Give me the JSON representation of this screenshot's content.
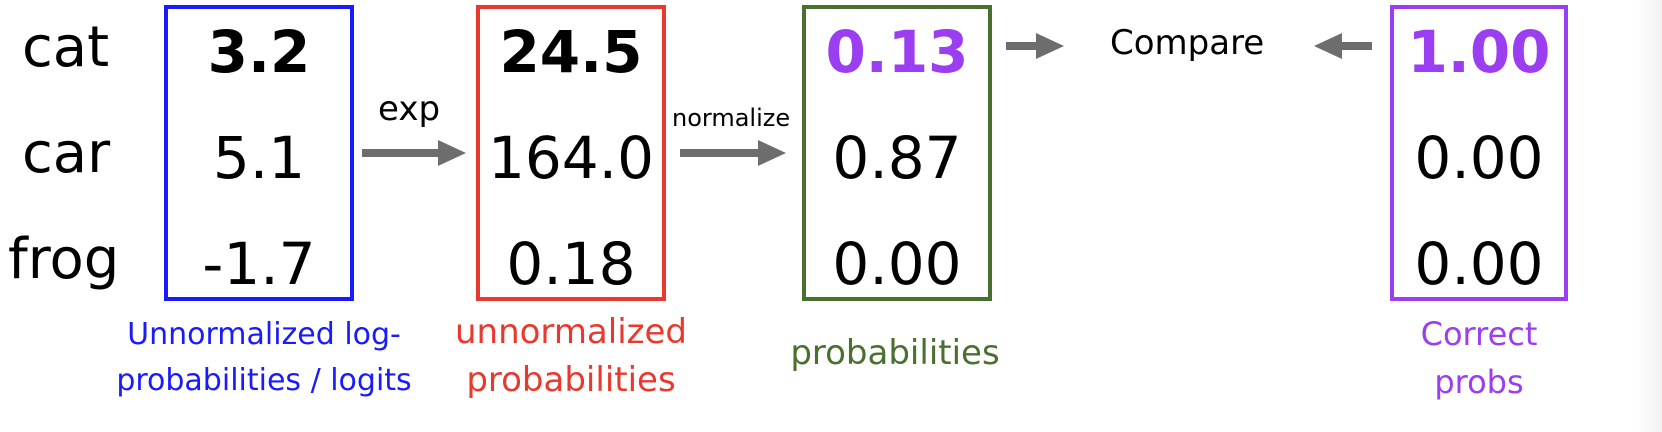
{
  "classes": [
    "cat",
    "car",
    "frog"
  ],
  "columns": {
    "logits": {
      "values": [
        "3.2",
        "5.1",
        "-1.7"
      ],
      "caption_line1": "Unnormalized log-",
      "caption_line2": "probabilities / logits",
      "color": "#1a1aff"
    },
    "unnorm": {
      "values": [
        "24.5",
        "164.0",
        "0.18"
      ],
      "caption_line1": "unnormalized",
      "caption_line2": "probabilities",
      "color": "#e8392f"
    },
    "probs": {
      "values": [
        "0.13",
        "0.87",
        "0.00"
      ],
      "caption": "probabilities",
      "color": "#4a7030"
    },
    "correct": {
      "values": [
        "1.00",
        "0.00",
        "0.00"
      ],
      "caption_line1": "Correct",
      "caption_line2": "probs",
      "color": "#9b3df0"
    }
  },
  "ops": {
    "exp": "exp",
    "normalize": "normalize",
    "compare": "Compare"
  },
  "colors": {
    "arrow": "#6d6d6d",
    "text": "#000000"
  }
}
